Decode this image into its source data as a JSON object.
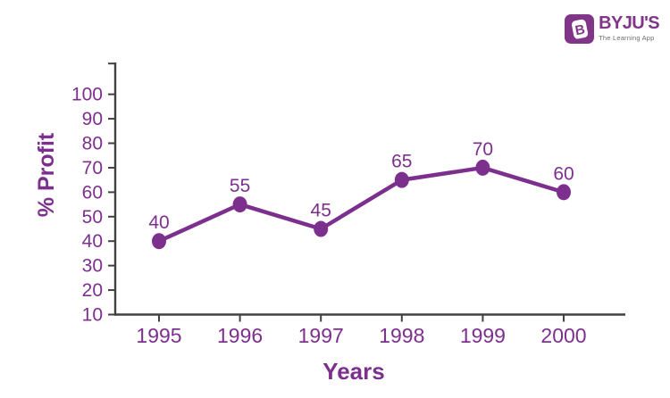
{
  "logo": {
    "name": "BYJU'S",
    "tagline": "The Learning App",
    "icon_letter": "B",
    "brand_color": "#813588",
    "tagline_color": "#6d6e71"
  },
  "chart_data": {
    "type": "line",
    "title": "",
    "xlabel": "Years",
    "ylabel": "% Profit",
    "categories": [
      "1995",
      "1996",
      "1997",
      "1998",
      "1999",
      "2000"
    ],
    "values": [
      40,
      55,
      45,
      65,
      70,
      60
    ],
    "point_labels": [
      "40",
      "55",
      "45",
      "65",
      "70",
      "60"
    ],
    "y_ticks": [
      10,
      20,
      30,
      40,
      50,
      60,
      70,
      80,
      90,
      100
    ],
    "ylim": [
      10,
      113
    ],
    "grid": false,
    "legend": "none",
    "line_color": "#7d2f8e",
    "label_color": "#7d2f8e",
    "axis_color": "#414042",
    "marker": "circle"
  }
}
